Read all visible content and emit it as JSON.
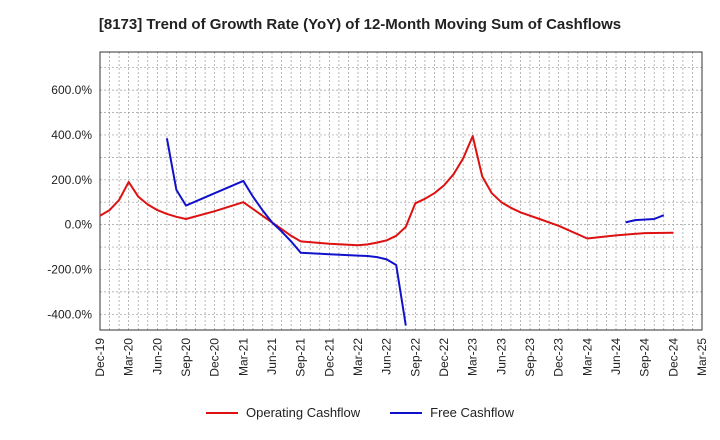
{
  "chart_data": {
    "type": "line",
    "title": "[8173]  Trend of Growth Rate (YoY) of 12-Month Moving Sum of Cashflows",
    "xlabel": "",
    "ylabel": "",
    "ylim": [
      -470,
      770
    ],
    "grid": true,
    "legend_position": "bottom",
    "x_tick_labels": [
      "Dec-19",
      "Mar-20",
      "Jun-20",
      "Sep-20",
      "Dec-20",
      "Mar-21",
      "Jun-21",
      "Sep-21",
      "Dec-21",
      "Mar-22",
      "Jun-22",
      "Sep-22",
      "Dec-22",
      "Mar-23",
      "Jun-23",
      "Sep-23",
      "Dec-23",
      "Mar-24",
      "Jun-24",
      "Sep-24",
      "Dec-24",
      "Mar-25"
    ],
    "y_ticks": [
      -400,
      -200,
      0,
      200,
      400,
      600
    ],
    "y_tick_labels": [
      "-400.0%",
      "-200.0%",
      "0.0%",
      "200.0%",
      "400.0%",
      "600.0%"
    ],
    "series": [
      {
        "name": "Operating Cashflow",
        "color": "#dd1111",
        "points": [
          [
            0,
            40
          ],
          [
            1,
            65
          ],
          [
            2,
            110
          ],
          [
            3,
            190
          ],
          [
            4,
            125
          ],
          [
            5,
            90
          ],
          [
            6,
            65
          ],
          [
            7,
            48
          ],
          [
            8,
            35
          ],
          [
            9,
            25
          ],
          [
            12,
            60
          ],
          [
            15,
            100
          ],
          [
            16,
            70
          ],
          [
            17,
            40
          ],
          [
            18,
            10
          ],
          [
            19,
            -20
          ],
          [
            20,
            -50
          ],
          [
            21,
            -75
          ],
          [
            24,
            -85
          ],
          [
            27,
            -92
          ],
          [
            28,
            -88
          ],
          [
            29,
            -80
          ],
          [
            30,
            -70
          ],
          [
            31,
            -50
          ],
          [
            32,
            -10
          ],
          [
            33,
            95
          ],
          [
            34,
            115
          ],
          [
            35,
            140
          ],
          [
            36,
            175
          ],
          [
            37,
            225
          ],
          [
            38,
            295
          ],
          [
            39,
            395
          ],
          [
            40,
            215
          ],
          [
            41,
            140
          ],
          [
            42,
            100
          ],
          [
            43,
            75
          ],
          [
            44,
            55
          ],
          [
            45,
            40
          ],
          [
            46,
            25
          ],
          [
            47,
            10
          ],
          [
            48,
            -5
          ],
          [
            51,
            -62
          ],
          [
            54,
            -48
          ],
          [
            57,
            -38
          ],
          [
            60,
            -36
          ]
        ]
      },
      {
        "name": "Free Cashflow",
        "color": "#1111cc",
        "points": [
          [
            7,
            385
          ],
          [
            8,
            155
          ],
          [
            9,
            85
          ],
          [
            12,
            140
          ],
          [
            15,
            195
          ],
          [
            16,
            125
          ],
          [
            17,
            65
          ],
          [
            18,
            10
          ],
          [
            19,
            -30
          ],
          [
            20,
            -75
          ],
          [
            21,
            -125
          ],
          [
            24,
            -132
          ],
          [
            27,
            -138
          ],
          [
            28,
            -140
          ],
          [
            29,
            -145
          ],
          [
            30,
            -155
          ],
          [
            31,
            -180
          ],
          [
            32,
            -450
          ]
        ]
      },
      {
        "name": "Free Cashflow",
        "color": "#1111cc",
        "points": [
          [
            55,
            10
          ],
          [
            56,
            20
          ],
          [
            58,
            25
          ],
          [
            59,
            42
          ]
        ]
      }
    ]
  }
}
